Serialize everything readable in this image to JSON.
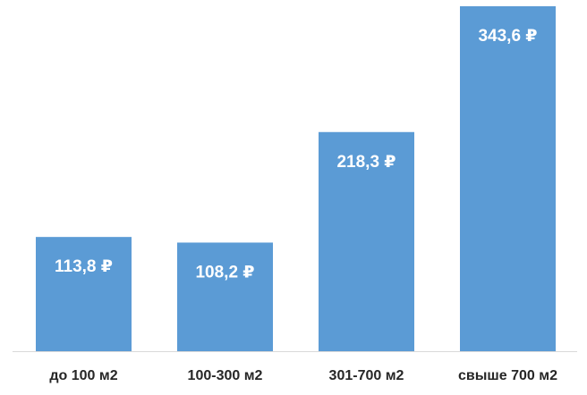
{
  "chart_data": {
    "type": "bar",
    "categories": [
      "до 100 м2",
      "100-300 м2",
      "301-700 м2",
      "свыше 700 м2"
    ],
    "values": [
      113.8,
      108.2,
      218.3,
      343.6
    ],
    "value_labels": [
      "113,8 ₽",
      "108,2 ₽",
      "218,3 ₽",
      "343,6 ₽"
    ],
    "color": "#5b9bd5"
  }
}
